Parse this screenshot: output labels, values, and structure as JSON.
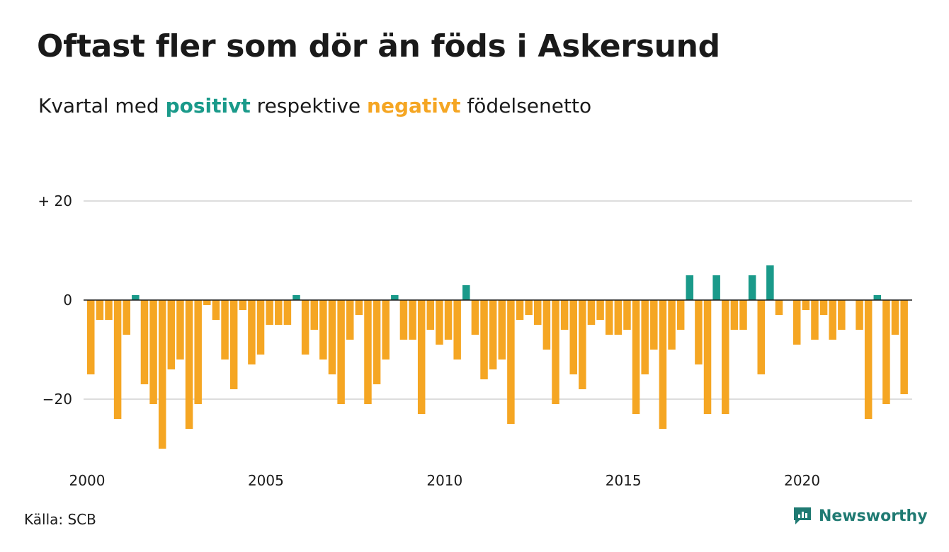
{
  "title": "Oftast fler som dör än föds i Askersund",
  "subtitle": {
    "prefix": "Kvartal med ",
    "positive": "positivt",
    "middle": " respektive ",
    "negative": "negativt",
    "suffix": " födelsenetto"
  },
  "source": "Källa: SCB",
  "brand": "Newsworthy",
  "colors": {
    "positive": "#1a9a8a",
    "negative": "#f5a623",
    "grid": "#dddddd",
    "brand": "#1f7a72"
  },
  "chart_data": {
    "type": "bar",
    "start_year": 2000,
    "values": [
      -15,
      -4,
      -4,
      -24,
      -7,
      1,
      -17,
      -21,
      -30,
      -14,
      -12,
      -26,
      -21,
      -1,
      -4,
      -12,
      -18,
      -2,
      -13,
      -11,
      -5,
      -5,
      -5,
      1,
      -11,
      -6,
      -12,
      -15,
      -21,
      -8,
      -3,
      -21,
      -17,
      -12,
      1,
      -8,
      -8,
      -23,
      -6,
      -9,
      -8,
      -12,
      3,
      -7,
      -16,
      -14,
      -12,
      -25,
      -4,
      -3,
      -5,
      -10,
      -21,
      -6,
      -15,
      -18,
      -5,
      -4,
      -7,
      -7,
      -6,
      -23,
      -15,
      -10,
      -26,
      -10,
      -6,
      5,
      -13,
      -23,
      5,
      -23,
      -6,
      -6,
      5,
      -15,
      7,
      -3,
      0,
      -9,
      -2,
      -8,
      -3,
      -8,
      -6,
      0,
      -6,
      -24,
      1,
      -21,
      -7,
      -19
    ],
    "x_ticks": [
      {
        "label": "2000",
        "year": 2000
      },
      {
        "label": "2005",
        "year": 2005
      },
      {
        "label": "2010",
        "year": 2010
      },
      {
        "label": "2015",
        "year": 2015
      },
      {
        "label": "2020",
        "year": 2020
      }
    ],
    "y_ticks": [
      {
        "label": "+ 20",
        "value": 20
      },
      {
        "label": "0",
        "value": 0
      },
      {
        "label": "−20",
        "value": -20
      }
    ],
    "ylim": [
      -30,
      20
    ],
    "grid": true
  }
}
